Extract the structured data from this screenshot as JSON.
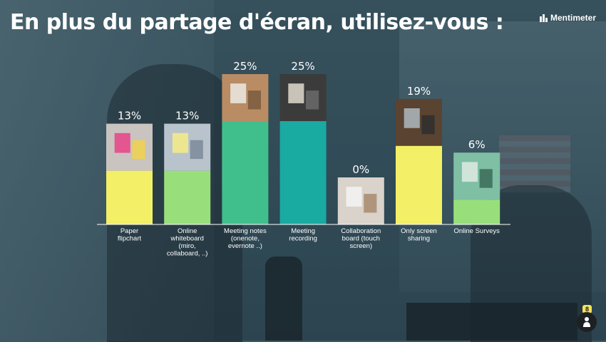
{
  "slide": {
    "title": "En plus du partage d'écran, utilisez-vous :",
    "brand": "Mentimeter",
    "participant_count": "8"
  },
  "colors": {
    "yellow": "#f3ef66",
    "light_green": "#98df7c",
    "green": "#40bf8c",
    "teal": "#19aaa2",
    "axis": "#ffffff",
    "text": "#ffffff"
  },
  "chart_data": {
    "type": "bar",
    "title": "En plus du partage d'écran, utilisez-vous :",
    "xlabel": "",
    "ylabel": "",
    "ylim": [
      0,
      25
    ],
    "grid": false,
    "legend": "none",
    "categories": [
      [
        "Paper",
        "flipchart"
      ],
      [
        "Online",
        "whiteboard",
        "(miro,",
        "collaboard, ..)"
      ],
      [
        "Meeting notes",
        "(onenote,",
        "evernote ..)"
      ],
      [
        "Meeting",
        "recording"
      ],
      [
        "Collaboration",
        "board (touch",
        "screen)"
      ],
      [
        "Only screen",
        "sharing"
      ],
      [
        "Online Surveys"
      ]
    ],
    "values": [
      13,
      13,
      25,
      25,
      0,
      19,
      6
    ],
    "labels": [
      "13%",
      "13%",
      "25%",
      "25%",
      "0%",
      "19%",
      "6%"
    ],
    "bar_colors": [
      "#f3ef66",
      "#98df7c",
      "#40bf8c",
      "#19aaa2",
      "#f3ef66",
      "#f3ef66",
      "#98df7c"
    ],
    "image_icons": [
      "sticky-notes-photo",
      "whiteboard-photo",
      "notebook-photo",
      "microphone-photo",
      "presenter-photo",
      "tv-screen-photo",
      "survey-form-photo"
    ]
  }
}
